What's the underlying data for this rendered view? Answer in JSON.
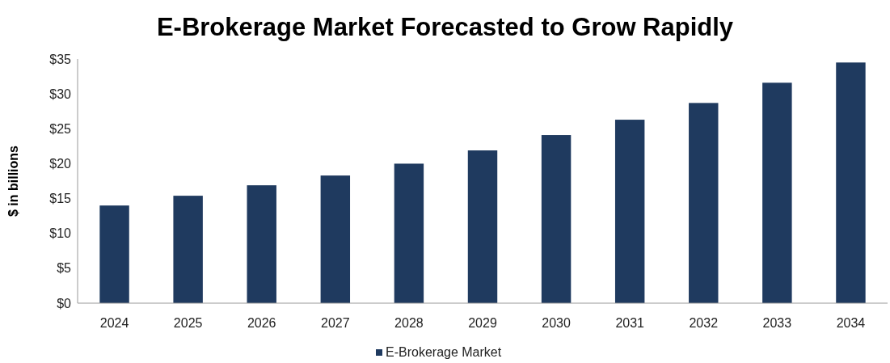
{
  "chart_data": {
    "type": "bar",
    "title": "E-Brokerage Market Forecasted to Grow Rapidly",
    "ylabel": "$ in billions",
    "categories": [
      "2024",
      "2025",
      "2026",
      "2027",
      "2028",
      "2029",
      "2030",
      "2031",
      "2032",
      "2033",
      "2034"
    ],
    "series": [
      {
        "name": "E-Brokerage Market",
        "color": "#1f3a5f",
        "values": [
          14.0,
          15.4,
          16.9,
          18.3,
          20.0,
          21.9,
          24.1,
          26.3,
          28.7,
          31.6,
          34.5
        ]
      }
    ],
    "ylim": [
      0,
      35
    ],
    "yticks": [
      {
        "value": 0,
        "label": "$0"
      },
      {
        "value": 5,
        "label": "$5"
      },
      {
        "value": 10,
        "label": "$10"
      },
      {
        "value": 15,
        "label": "$15"
      },
      {
        "value": 20,
        "label": "$20"
      },
      {
        "value": 25,
        "label": "$25"
      },
      {
        "value": 30,
        "label": "$30"
      },
      {
        "value": 35,
        "label": "$35"
      }
    ],
    "grid": false,
    "legend": "bottom"
  }
}
